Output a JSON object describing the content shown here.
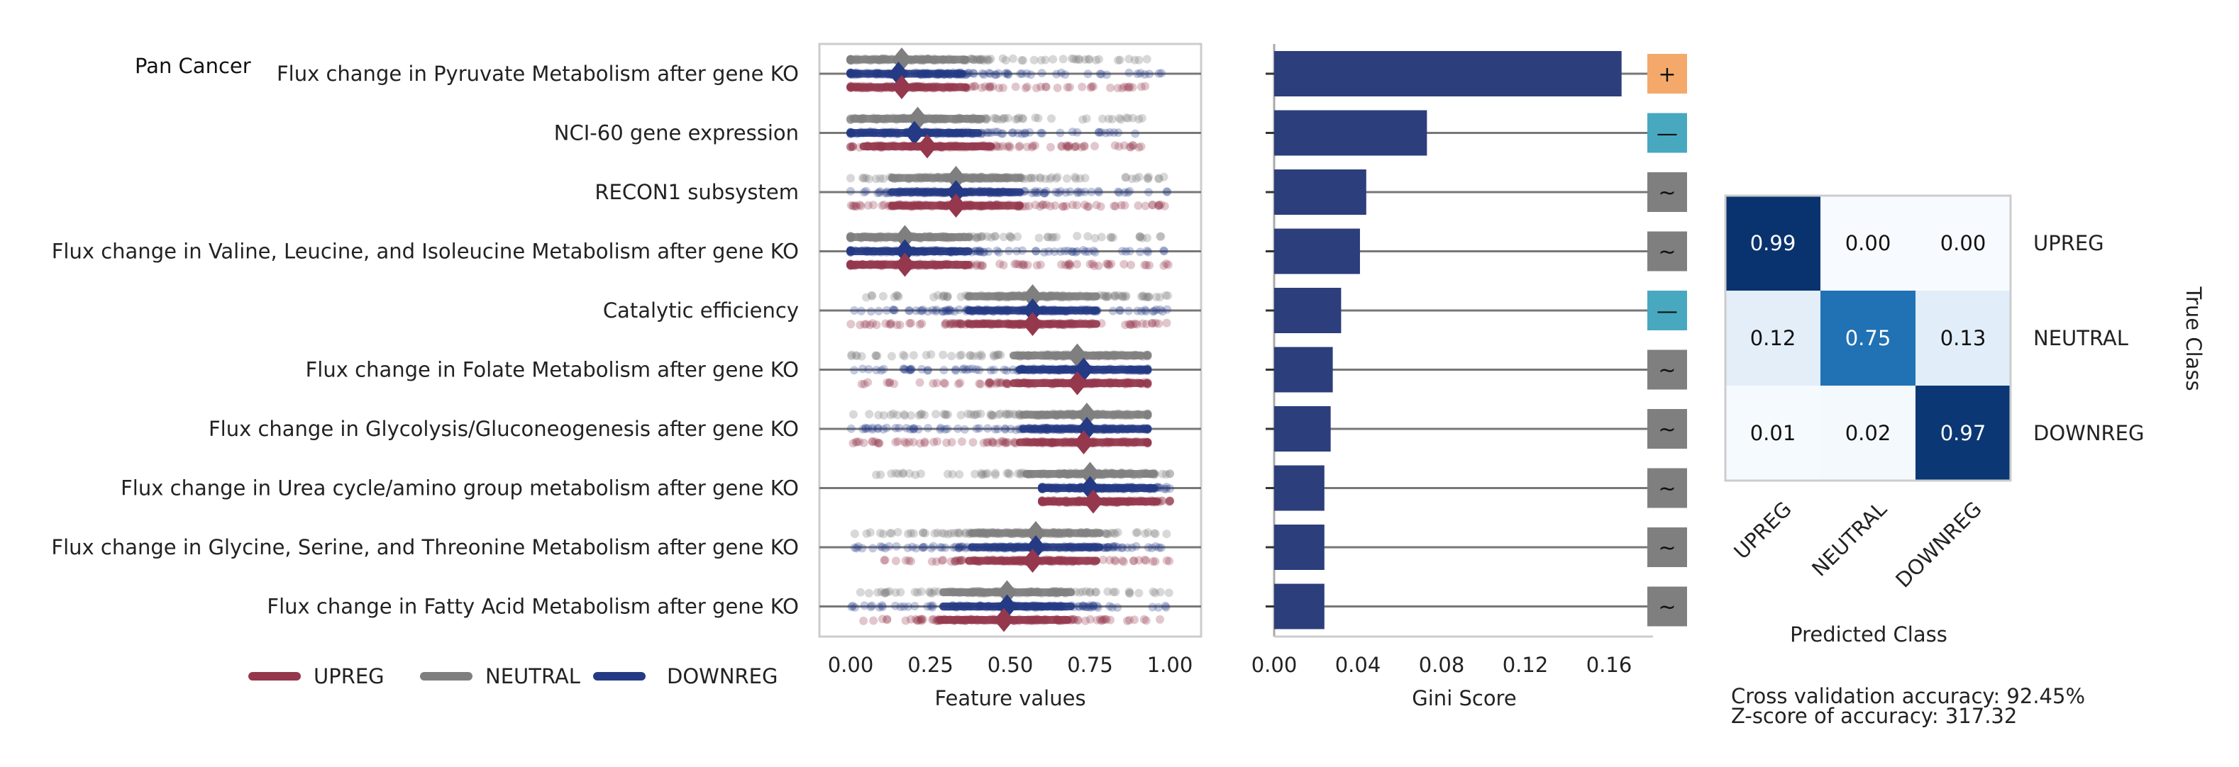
{
  "panel_title": "Pan Cancer",
  "summary": {
    "cv_accuracy": "Cross validation accuracy: 92.45%",
    "z_score": "Z-score of accuracy: 317.32"
  },
  "colors": {
    "UPREG": "#95374d",
    "NEUTRAL": "#7f7f7f",
    "DOWNREG": "#253a84",
    "gini_bar": "#2c3e7b",
    "sign_plus": "#f4a96a",
    "sign_minus": "#48a8bf",
    "sign_tilde": "#7f7f7f"
  },
  "legend": [
    "UPREG",
    "NEUTRAL",
    "DOWNREG"
  ],
  "chart_data": [
    {
      "type": "scatter",
      "xlabel": "Feature values",
      "xlim": [
        -0.1,
        1.1
      ],
      "xticks": [
        "0.00",
        "0.25",
        "0.50",
        "0.75",
        "1.00"
      ],
      "features": [
        "Flux change in Pyruvate Metabolism after gene KO",
        "NCI-60 gene expression",
        "RECON1 subsystem",
        "Flux change in Valine, Leucine, and Isoleucine Metabolism after gene KO",
        "Catalytic efficiency",
        "Flux change in Folate Metabolism after gene KO",
        "Flux change in Glycolysis/Gluconeogenesis after gene KO",
        "Flux change in Urea cycle/amino group metabolism after gene KO",
        "Flux change in Glycine, Serine, and Threonine Metabolism after gene KO",
        "Flux change in Fatty Acid Metabolism after gene KO"
      ],
      "series": [
        {
          "name": "NEUTRAL",
          "means": [
            0.16,
            0.21,
            0.33,
            0.17,
            0.57,
            0.71,
            0.74,
            0.75,
            0.58,
            0.49
          ]
        },
        {
          "name": "DOWNREG",
          "means": [
            0.15,
            0.2,
            0.33,
            0.17,
            0.57,
            0.73,
            0.74,
            0.75,
            0.58,
            0.49
          ]
        },
        {
          "name": "UPREG",
          "means": [
            0.16,
            0.24,
            0.33,
            0.17,
            0.57,
            0.71,
            0.73,
            0.76,
            0.57,
            0.48
          ]
        }
      ],
      "ranges": {
        "NEUTRAL": [
          [
            0.0,
            0.93
          ],
          [
            0.0,
            0.93
          ],
          [
            0.0,
            1.0
          ],
          [
            0.0,
            1.0
          ],
          [
            0.0,
            1.0
          ],
          [
            0.0,
            0.93
          ],
          [
            0.0,
            0.93
          ],
          [
            0.0,
            1.0
          ],
          [
            0.0,
            1.0
          ],
          [
            0.0,
            1.0
          ]
        ],
        "DOWNREG": [
          [
            0.0,
            1.0
          ],
          [
            0.0,
            0.93
          ],
          [
            0.0,
            1.0
          ],
          [
            0.0,
            1.0
          ],
          [
            0.0,
            1.0
          ],
          [
            0.0,
            0.93
          ],
          [
            0.0,
            0.93
          ],
          [
            0.6,
            1.0
          ],
          [
            0.0,
            1.0
          ],
          [
            0.0,
            1.0
          ]
        ],
        "UPREG": [
          [
            0.0,
            0.93
          ],
          [
            0.0,
            0.93
          ],
          [
            0.0,
            1.0
          ],
          [
            0.0,
            1.0
          ],
          [
            0.0,
            1.0
          ],
          [
            0.0,
            0.93
          ],
          [
            0.0,
            0.93
          ],
          [
            0.6,
            1.0
          ],
          [
            0.0,
            1.0
          ],
          [
            0.0,
            1.0
          ]
        ]
      }
    },
    {
      "type": "bar",
      "xlabel": "Gini Score",
      "xlim": [
        0,
        0.175
      ],
      "xticks": [
        "0.00",
        "0.04",
        "0.08",
        "0.12",
        "0.16"
      ],
      "values": [
        0.166,
        0.073,
        0.044,
        0.041,
        0.032,
        0.028,
        0.027,
        0.024,
        0.024,
        0.024
      ],
      "signs": [
        "+",
        "—",
        "~",
        "~",
        "—",
        "~",
        "~",
        "~",
        "~",
        "~"
      ]
    },
    {
      "type": "heatmap",
      "xlabel": "Predicted Class",
      "ylabel": "True Class",
      "rows": [
        "UPREG",
        "NEUTRAL",
        "DOWNREG"
      ],
      "cols": [
        "UPREG",
        "NEUTRAL",
        "DOWNREG"
      ],
      "values": [
        [
          0.99,
          0.0,
          0.0
        ],
        [
          0.12,
          0.75,
          0.13
        ],
        [
          0.01,
          0.02,
          0.97
        ]
      ],
      "labels": [
        [
          "0.99",
          "0.00",
          "0.00"
        ],
        [
          "0.12",
          "0.75",
          "0.13"
        ],
        [
          "0.01",
          "0.02",
          "0.97"
        ]
      ]
    }
  ]
}
